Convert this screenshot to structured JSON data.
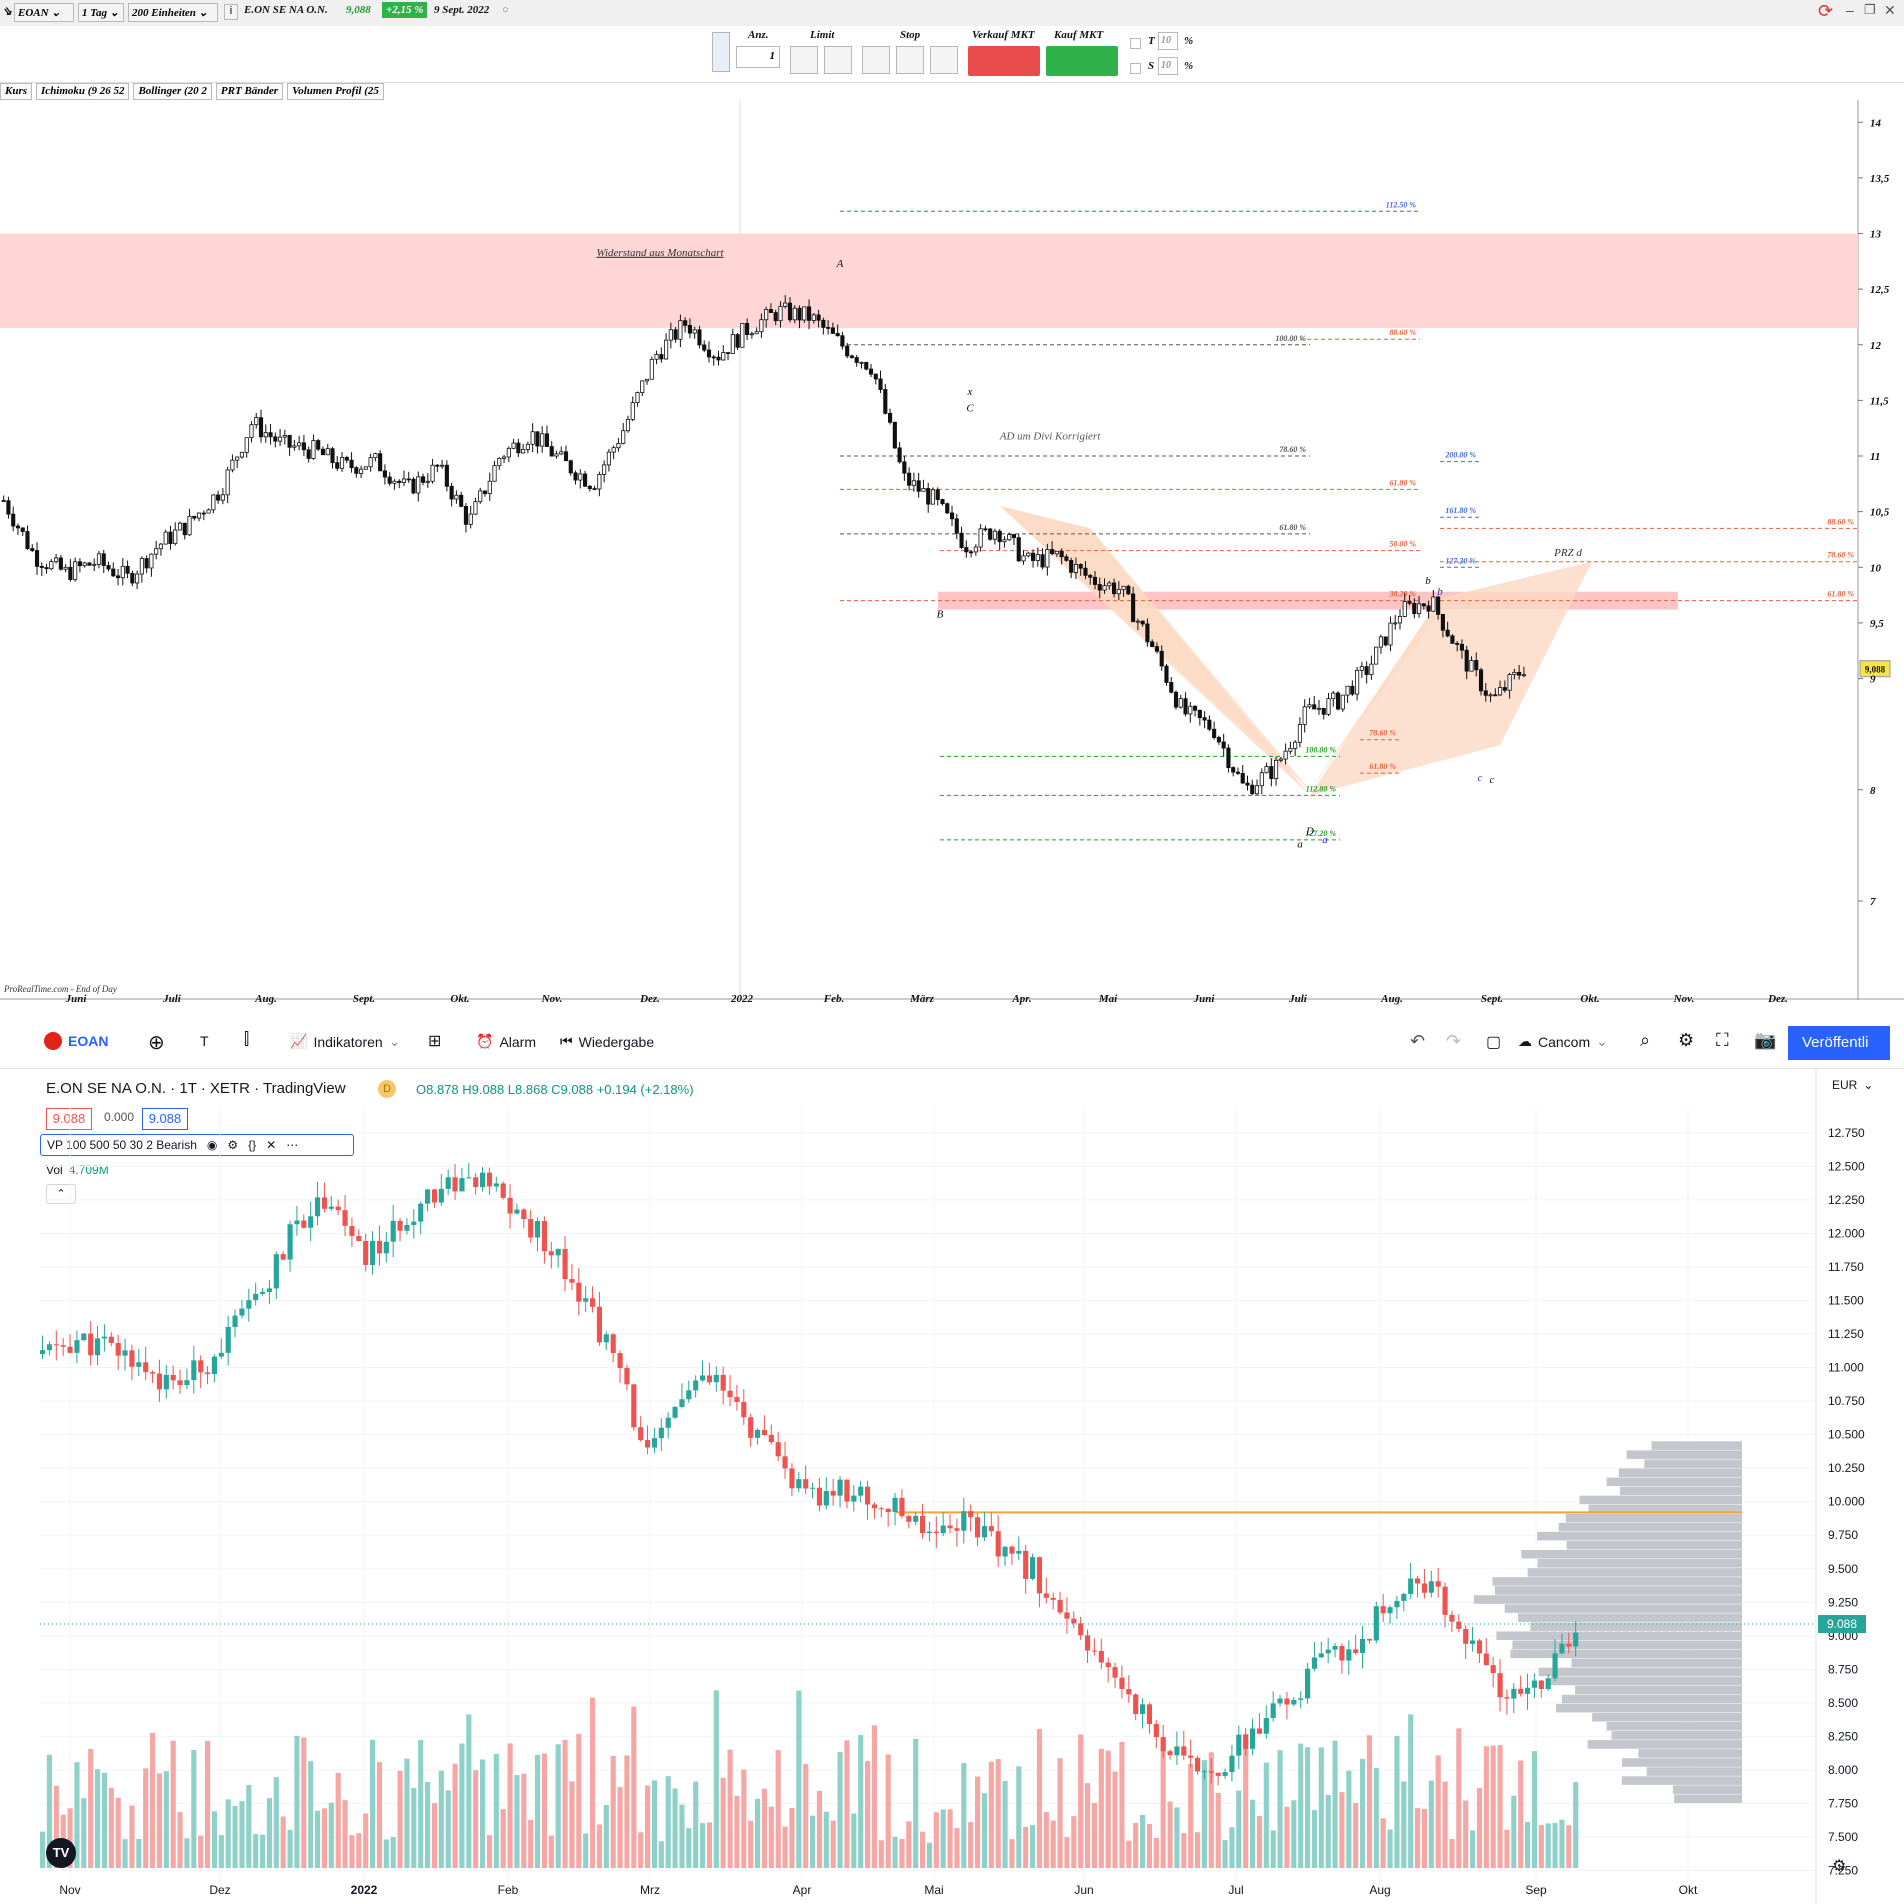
{
  "prt": {
    "toolbar": {
      "symbol": "EOAN",
      "timeframe": "1 Tag",
      "units": "200 Einheiten",
      "instrument": "E.ON SE NA O.N.",
      "price": "9,088",
      "change": "+2,15 %",
      "date": "9 Sept. 2022"
    },
    "order_panel": {
      "anz_label": "Anz.",
      "anz_value": "1",
      "limit_label": "Limit",
      "stop_label": "Stop",
      "sell_label": "Verkauf MKT",
      "buy_label": "Kauf MKT",
      "t_label": "T",
      "t_value": "10",
      "s_label": "S",
      "s_value": "10",
      "pct": "%"
    },
    "indicator_bar": [
      "Kurs",
      "Ichimoku (9 26 52",
      "Bollinger (20 2",
      "PRT Bänder",
      "Volumen Profil (25"
    ],
    "watermark": "ProRealTime.com - End of Day",
    "colors": {
      "zone": "#ffd6d6",
      "pattern": "#fcd9c4",
      "fib_red": "#e8613a",
      "fib_blue": "#4169e1",
      "fib_green": "#22a022",
      "fib_gray": "#555555"
    },
    "chart_data": {
      "type": "candlestick",
      "title": "",
      "x_ticks": [
        "Juni",
        "Juli",
        "Aug.",
        "Sept.",
        "Okt.",
        "Nov.",
        "Dez.",
        "2022",
        "Feb.",
        "März",
        "Apr.",
        "Mai",
        "Juni",
        "Juli",
        "Aug.",
        "Sept.",
        "Okt.",
        "Nov.",
        "Dez."
      ],
      "y_ticks": [
        "14",
        "13,5",
        "13",
        "12,5",
        "12",
        "11,5",
        "11",
        "10,5",
        "10",
        "9,5",
        "9",
        "8",
        "7"
      ],
      "ylim": [
        6.2,
        14.2
      ],
      "last_price": "9,088",
      "close_path": [
        10.6,
        10.1,
        9.95,
        10.05,
        9.9,
        10.2,
        10.4,
        10.7,
        11.3,
        11.1,
        11.05,
        10.9,
        10.95,
        10.7,
        10.9,
        10.4,
        11.0,
        11.2,
        10.95,
        10.75,
        11.25,
        11.9,
        12.2,
        11.9,
        12.15,
        12.3,
        12.25,
        12.0,
        11.8,
        10.8,
        10.6,
        10.2,
        10.35,
        10.05,
        10.1,
        9.9,
        9.8,
        9.3,
        8.7,
        8.55,
        8.0,
        8.2,
        8.7,
        8.8,
        9.1,
        9.6,
        9.7,
        9.2,
        8.8,
        9.1
      ],
      "annotations": [
        {
          "text": "Widerstand aus Monatschart",
          "color": "#333"
        },
        {
          "text": "A",
          "color": "#111"
        },
        {
          "text": "B",
          "color": "#111"
        },
        {
          "text": "x",
          "color": "#111"
        },
        {
          "text": "C",
          "color": "#111"
        },
        {
          "text": "AD um Divi Korrigiert",
          "color": "#555"
        },
        {
          "text": "D",
          "color": "#111"
        },
        {
          "text": "a",
          "color": "#111"
        },
        {
          "text": "a",
          "color": "#2233cc"
        },
        {
          "text": "b",
          "color": "#111"
        },
        {
          "text": "b",
          "color": "#2233cc"
        },
        {
          "text": "c",
          "color": "#2233cc"
        },
        {
          "text": "c",
          "color": "#111"
        },
        {
          "text": "PRZ d",
          "color": "#333"
        }
      ],
      "fib_levels": [
        {
          "label": "112.50 %",
          "price": 13.2,
          "color": "#4169e1"
        },
        {
          "label": "100.00 %",
          "price": 12.0,
          "color": "#555555"
        },
        {
          "label": "88.60 %",
          "price": 12.05,
          "color": "#e8613a"
        },
        {
          "label": "78.60 %",
          "price": 11.0,
          "color": "#555555"
        },
        {
          "label": "61.80 %",
          "price": 10.7,
          "color": "#e8613a"
        },
        {
          "label": "61.80 %",
          "price": 10.3,
          "color": "#555555"
        },
        {
          "label": "50.00 %",
          "price": 10.15,
          "color": "#e8613a"
        },
        {
          "label": "200.00 %",
          "price": 10.95,
          "color": "#4169e1"
        },
        {
          "label": "161.80 %",
          "price": 10.45,
          "color": "#4169e1"
        },
        {
          "label": "127.20 %",
          "price": 10.0,
          "color": "#4169e1"
        },
        {
          "label": "38.20 %",
          "price": 9.7,
          "color": "#e8613a"
        },
        {
          "label": "88.60 %",
          "price": 10.35,
          "color": "#e8613a"
        },
        {
          "label": "78.60 %",
          "price": 10.05,
          "color": "#e8613a"
        },
        {
          "label": "61.80 %",
          "price": 9.7,
          "color": "#e8613a"
        },
        {
          "label": "100.00 %",
          "price": 8.3,
          "color": "#22a022"
        },
        {
          "label": "112.80 %",
          "price": 7.95,
          "color": "#22a022"
        },
        {
          "label": "127.20 %",
          "price": 7.55,
          "color": "#22a022"
        },
        {
          "label": "78.60 %",
          "price": 8.45,
          "color": "#e8613a"
        },
        {
          "label": "61.80 %",
          "price": 8.15,
          "color": "#e8613a"
        }
      ]
    }
  },
  "tv": {
    "toolbar": {
      "symbol": "EOAN",
      "t_label": "T",
      "indicators_label": "Indikatoren",
      "alarm_label": "Alarm",
      "replay_label": "Wiedergabe",
      "layout_label": "Cancom",
      "publish_label": "Veröffentli"
    },
    "legend": {
      "title": "E.ON SE NA O.N. · 1T · XETR · TradingView",
      "badge": "D",
      "ohlc": "O8.878 H9.088 L8.868 C9.088 +0.194 (+2.18%)",
      "bid": "9.088",
      "spread": "0.000",
      "ask": "9.088",
      "vp_label": "VP 100 500 50 30 2 Bearish",
      "vol_label": "Vol",
      "vol_value": "4.709M",
      "currency": "EUR"
    },
    "colors": {
      "up": "#26a69a",
      "down": "#ef5350",
      "vol_up": "#8fd0c9",
      "vol_down": "#f4a7a5",
      "poc": "#f5a623",
      "vp": "#c3c6cc"
    },
    "chart_data": {
      "type": "candlestick",
      "title": "",
      "x_ticks": [
        "Nov",
        "Dez",
        "2022",
        "Feb",
        "Mrz",
        "Apr",
        "Mai",
        "Jun",
        "Jul",
        "Aug",
        "Sep",
        "Okt"
      ],
      "y_ticks": [
        "12.750",
        "12.500",
        "12.250",
        "12.000",
        "11.750",
        "11.500",
        "11.250",
        "11.000",
        "10.750",
        "10.500",
        "10.250",
        "10.000",
        "9.750",
        "9.500",
        "9.250",
        "9.000",
        "8.750",
        "8.500",
        "8.250",
        "8.000",
        "7.750",
        "7.500",
        "7.250"
      ],
      "ylim": [
        7.12,
        12.95
      ],
      "last_price": "9.088",
      "poc_price": 9.92,
      "close_path": [
        11.1,
        11.2,
        11.15,
        11.05,
        10.85,
        11.0,
        11.3,
        11.6,
        12.1,
        12.3,
        11.8,
        12.0,
        12.3,
        12.4,
        12.35,
        12.1,
        11.9,
        11.5,
        11.0,
        10.3,
        10.8,
        10.9,
        10.6,
        10.3,
        10.0,
        10.1,
        10.0,
        9.9,
        9.8,
        9.9,
        9.6,
        9.5,
        9.1,
        8.8,
        8.6,
        8.2,
        8.0,
        8.05,
        8.3,
        8.5,
        8.8,
        8.9,
        9.2,
        9.45,
        9.2,
        8.8,
        8.5,
        8.7,
        9.0
      ],
      "volume_max": "4.709M"
    }
  }
}
